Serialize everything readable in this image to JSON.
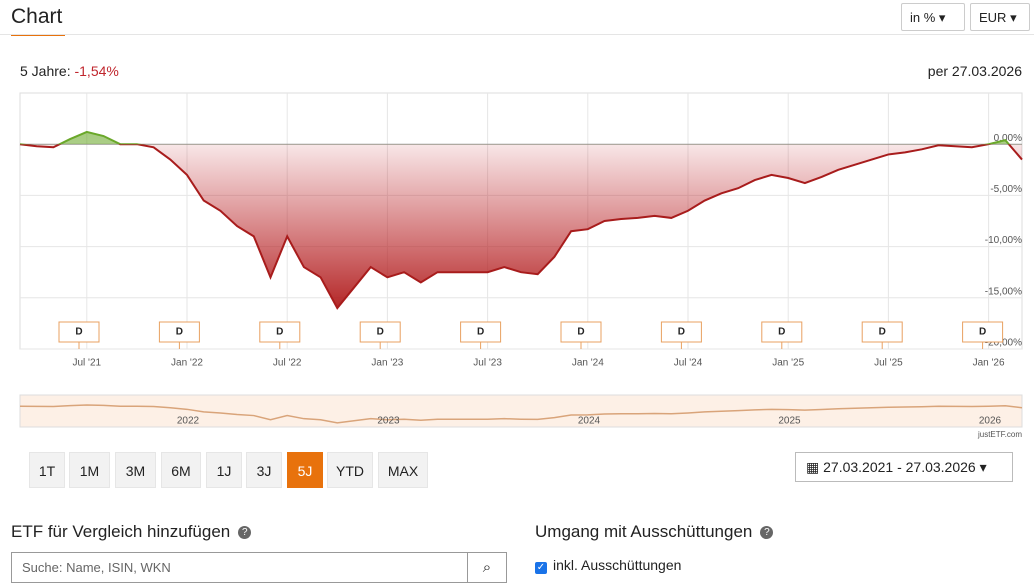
{
  "header": {
    "title": "Chart",
    "unit_select": "in %",
    "currency_select": "EUR"
  },
  "summary": {
    "period": "5 Jahre:",
    "performance": "-1,54%",
    "date": "per 27.03.2026"
  },
  "chart_data": {
    "type": "line",
    "categories": [
      null,
      null,
      null,
      null,
      "Jul '21",
      null,
      null,
      null,
      null,
      null,
      "Jan '22",
      null,
      null,
      null,
      null,
      null,
      "Jul '22",
      null,
      null,
      null,
      null,
      null,
      "Jan '23",
      null,
      null,
      null,
      null,
      null,
      "Jul '23",
      null,
      null,
      null,
      null,
      null,
      "Jan '24",
      null,
      null,
      null,
      null,
      null,
      "Jul '24",
      null,
      null,
      null,
      null,
      null,
      "Jan '25",
      null,
      null,
      null,
      null,
      null,
      "Jul '25",
      null,
      null,
      null,
      null,
      null,
      "Jan '26",
      null,
      null
    ],
    "series": [
      {
        "color": "#a81c1c",
        "values": [
          0,
          -0.2,
          -0.3,
          0.5,
          1.2,
          0.8,
          0,
          0,
          -0.3,
          -1.5,
          -3,
          -5.5,
          -6.5,
          -8,
          -9,
          -13,
          -9,
          -12,
          -13,
          -16,
          -14,
          -12,
          -13,
          -12.5,
          -13.5,
          -12.5,
          -12.5,
          -12.5,
          -12.5,
          -12,
          -12.5,
          -12.7,
          -11,
          -8.5,
          -8.3,
          -7.5,
          -7.3,
          -7.2,
          -7,
          -7.2,
          -6.5,
          -5.5,
          -4.8,
          -4.3,
          -3.5,
          -3,
          -3.3,
          -3.8,
          -3.2,
          -2.5,
          -2,
          -1.5,
          -1,
          -0.8,
          -0.5,
          -0.1,
          -0.2,
          -0.3,
          0,
          0.4,
          -1.5
        ]
      }
    ],
    "positive_color": "#6aa82a",
    "ylim": [
      -20,
      5
    ],
    "yticks": [
      {
        "value": 0,
        "label": "0,00%"
      },
      {
        "value": -5,
        "label": "-5,00%"
      },
      {
        "value": -10,
        "label": "-10,00%"
      },
      {
        "value": -15,
        "label": "-15,00%"
      },
      {
        "value": -20,
        "label": "-20,00%"
      }
    ],
    "grid": true,
    "dividends": [
      "D",
      "D",
      "D",
      "D",
      "D",
      "D",
      "D",
      "D",
      "D",
      "D"
    ],
    "navigator_labels": [
      "2022",
      "2023",
      "2024",
      "2025",
      "2026"
    ],
    "credit": "justETF.com"
  },
  "periods": {
    "buttons": [
      "1T",
      "1M",
      "3M",
      "6M",
      "1J",
      "3J",
      "5J",
      "YTD",
      "MAX"
    ],
    "active": "5J",
    "range": "27.03.2021 - 27.03.2026"
  },
  "compare": {
    "title": "ETF für Vergleich hinzufügen",
    "placeholder": "Suche: Name, ISIN, WKN"
  },
  "distributions": {
    "title": "Umgang mit Ausschüttungen",
    "option": "inkl. Ausschüttungen"
  }
}
